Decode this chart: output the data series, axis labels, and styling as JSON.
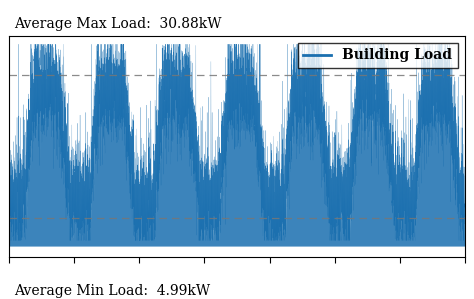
{
  "avg_max_load": 30.88,
  "avg_min_load": 4.99,
  "line_color": "#1a6faf",
  "dashed_line_color": "#777777",
  "background_color": "#ffffff",
  "legend_label": "Building Load",
  "annotation_max": "Average Max Load:  30.88kW",
  "annotation_min": "Average Min Load:  4.99kW",
  "annotation_fontsize": 10,
  "legend_fontsize": 10,
  "ylim_min": -2,
  "ylim_max": 38,
  "num_days": 7,
  "samples_per_day": 1440,
  "seed": 42
}
